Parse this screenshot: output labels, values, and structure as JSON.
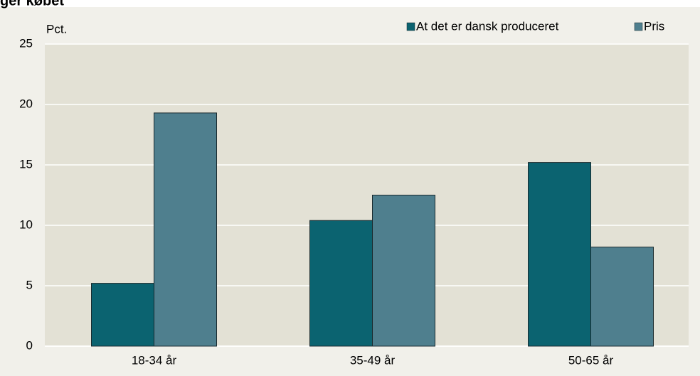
{
  "chart_data": {
    "type": "bar",
    "title": "ger købet",
    "y_label": "Pct.",
    "categories": [
      "18-34 år",
      "35-49 år",
      "50-65 år"
    ],
    "series": [
      {
        "name": "At det er dansk produceret",
        "color": "#0b6370",
        "values": [
          5.2,
          10.4,
          15.2
        ]
      },
      {
        "name": "Pris",
        "color": "#4f7f8e",
        "values": [
          19.3,
          12.5,
          8.2
        ]
      }
    ],
    "ylim": [
      0,
      25
    ],
    "yticks": [
      0,
      5,
      10,
      15,
      20,
      25
    ],
    "grid": true,
    "legend": "top-right"
  }
}
